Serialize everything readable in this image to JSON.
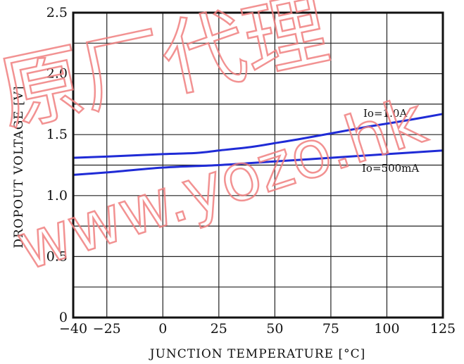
{
  "chart_data": {
    "type": "line",
    "xlabel": "JUNCTION TEMPERATURE [°C]",
    "ylabel": "DROPOUT VOLTAGE [V]",
    "xlim": [
      -40,
      125
    ],
    "ylim": [
      0,
      2.5
    ],
    "x_ticks": [
      -40,
      -25,
      0,
      25,
      50,
      75,
      100,
      125
    ],
    "x_tick_labels": [
      "−40",
      "−25",
      "0",
      "25",
      "50",
      "75",
      "100",
      "125"
    ],
    "y_ticks": [
      0,
      0.5,
      1.0,
      1.5,
      2.0,
      2.5
    ],
    "y_tick_labels": [
      "0",
      "0.5",
      "1.0",
      "1.5",
      "2.0",
      "2.5"
    ],
    "grid": true,
    "series": [
      {
        "name": "Io=1.0A",
        "color": "#1f2bd6",
        "x": [
          -40,
          -25,
          0,
          15,
          25,
          40,
          50,
          60,
          75,
          90,
          100,
          110,
          125
        ],
        "y": [
          1.31,
          1.32,
          1.34,
          1.35,
          1.37,
          1.4,
          1.43,
          1.46,
          1.51,
          1.56,
          1.59,
          1.62,
          1.67
        ]
      },
      {
        "name": "Io=500mA",
        "color": "#1f2bd6",
        "x": [
          -40,
          -25,
          0,
          25,
          50,
          75,
          100,
          125
        ],
        "y": [
          1.17,
          1.19,
          1.23,
          1.25,
          1.28,
          1.31,
          1.34,
          1.37
        ]
      }
    ]
  },
  "watermark": {
    "chinese": "原厂代理",
    "url": "www.yozo.hk"
  }
}
